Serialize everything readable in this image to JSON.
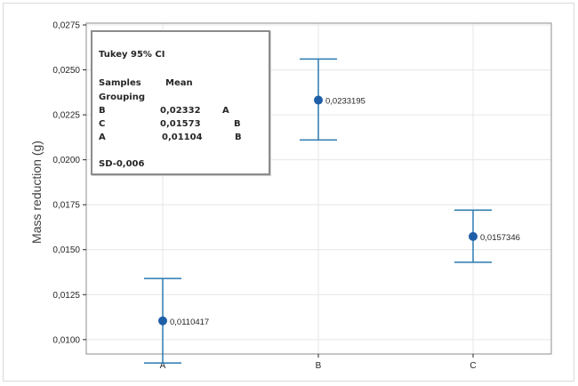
{
  "chart_data": {
    "type": "interval",
    "ylabel": "Mass reduction (g)",
    "xlabel": "",
    "ylim": [
      0.0092,
      0.0276
    ],
    "yticks": [
      "0,0100",
      "0,0125",
      "0,0150",
      "0,0175",
      "0,0200",
      "0,0225",
      "0,0250",
      "0,0275"
    ],
    "ytick_values": [
      0.01,
      0.0125,
      0.015,
      0.0175,
      0.02,
      0.0225,
      0.025,
      0.0275
    ],
    "categories": [
      "A",
      "B",
      "C"
    ],
    "points": [
      {
        "category": "A",
        "mean": 0.0110417,
        "lower": 0.0087,
        "upper": 0.0134,
        "label": "0,0110417"
      },
      {
        "category": "B",
        "mean": 0.0233195,
        "lower": 0.0211,
        "upper": 0.0256,
        "label": "0,0233195"
      },
      {
        "category": "C",
        "mean": 0.0157346,
        "lower": 0.0143,
        "upper": 0.0172,
        "label": "0,0157346"
      }
    ],
    "grid": true,
    "colors": {
      "marker": "#1f5fa8",
      "errorbar": "#2a7ab0",
      "grid": "#e6e6e6",
      "axis": "#262626"
    },
    "legend": {
      "placement": "top-left",
      "title": "Tukey 95% CI",
      "header_col1": "Samples",
      "header_col1_line2": "Grouping",
      "header_col2": "Mean",
      "rows": [
        {
          "sample": "B",
          "mean": "0,02332",
          "group": "A"
        },
        {
          "sample": "C",
          "mean": "0,01573",
          "group": "B"
        },
        {
          "sample": "A",
          "mean": "0,01104",
          "group": "B"
        }
      ],
      "footer": "SD-0,006"
    }
  }
}
